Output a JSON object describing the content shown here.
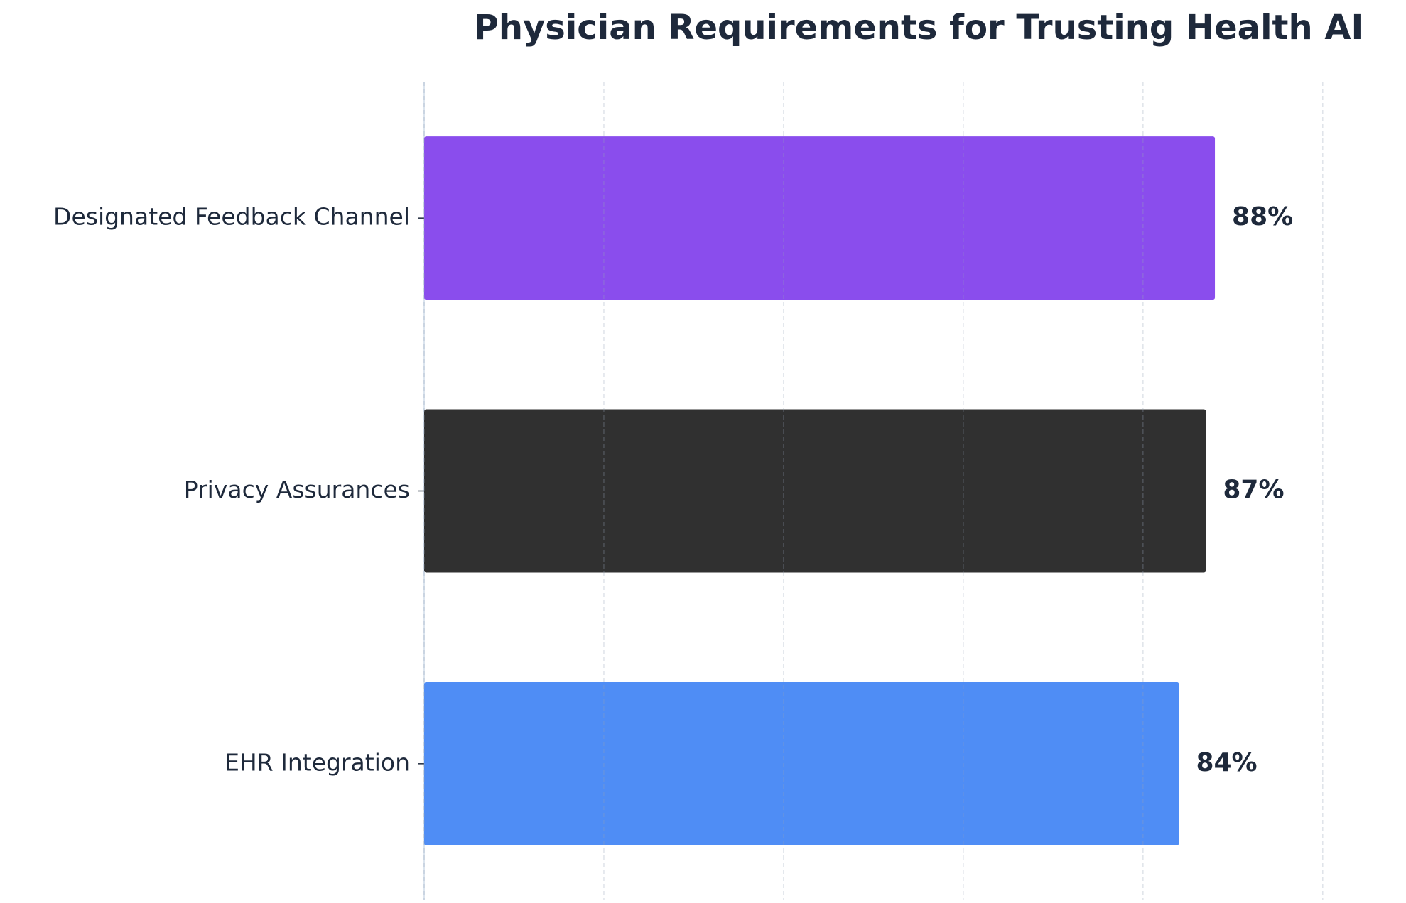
{
  "chart_data": {
    "type": "barh",
    "title": "Physician Requirements for Trusting Health AI",
    "categories": [
      "Designated Feedback Channel",
      "Privacy Assurances",
      "EHR Integration"
    ],
    "values": [
      88,
      87,
      84
    ],
    "value_labels": [
      "88%",
      "87%",
      "84%"
    ],
    "colors": [
      "#8a4ded",
      "#303030",
      "#4f8df5"
    ],
    "xlim": [
      0,
      108
    ],
    "xticks": [
      0,
      20,
      40,
      60,
      80,
      100
    ],
    "grid": true
  }
}
